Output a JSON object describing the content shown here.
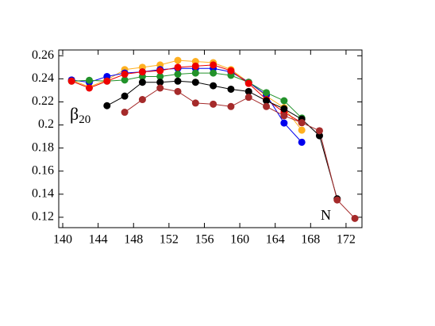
{
  "chart_data": {
    "type": "line",
    "xlabel": "N",
    "ylabel": "β",
    "ylabel_subscript": "20",
    "x": [
      141,
      143,
      145,
      147,
      149,
      151,
      153,
      155,
      157,
      159,
      161,
      163,
      165,
      167,
      169,
      171,
      173
    ],
    "series": [
      {
        "color": "#ffb020",
        "values": [
          0.239,
          0.233,
          0.239,
          0.248,
          0.25,
          0.252,
          0.256,
          0.255,
          0.254,
          0.248,
          0.237,
          0.225,
          0.215,
          0.1955,
          null,
          null,
          null
        ]
      },
      {
        "color": "#0000ee",
        "values": [
          0.239,
          0.237,
          0.242,
          0.245,
          0.246,
          0.248,
          0.249,
          0.249,
          0.249,
          0.246,
          0.237,
          0.226,
          0.2017,
          0.185,
          null,
          null,
          null
        ]
      },
      {
        "color": "#22922a",
        "values": [
          0.238,
          0.2387,
          0.238,
          0.239,
          0.242,
          0.242,
          0.244,
          0.245,
          0.245,
          0.243,
          0.237,
          0.228,
          0.221,
          0.206,
          null,
          null,
          null
        ]
      },
      {
        "color": "#ee0000",
        "values": [
          0.238,
          0.232,
          0.238,
          0.244,
          0.246,
          0.247,
          0.25,
          0.251,
          0.252,
          0.247,
          0.236,
          0.222,
          0.211,
          0.202,
          null,
          null,
          null
        ]
      },
      {
        "color": "#000000",
        "values": [
          null,
          null,
          0.2167,
          0.225,
          0.237,
          0.237,
          0.238,
          0.237,
          0.234,
          0.231,
          0.229,
          0.221,
          0.214,
          0.205,
          0.1907,
          0.136,
          null
        ]
      },
      {
        "color": "#a52a2a",
        "values": [
          null,
          null,
          null,
          0.211,
          0.222,
          0.232,
          0.229,
          0.219,
          0.218,
          0.216,
          0.224,
          0.216,
          0.208,
          0.202,
          0.195,
          0.135,
          0.119
        ]
      }
    ],
    "xlim": [
      139.55,
      173.8
    ],
    "xticks": [
      140,
      144,
      148,
      152,
      156,
      160,
      164,
      168,
      172
    ],
    "ylim": [
      0.111,
      0.265
    ],
    "yticks": [
      0.12,
      0.14,
      0.16,
      0.18,
      0.2,
      0.22,
      0.24,
      0.26
    ]
  }
}
